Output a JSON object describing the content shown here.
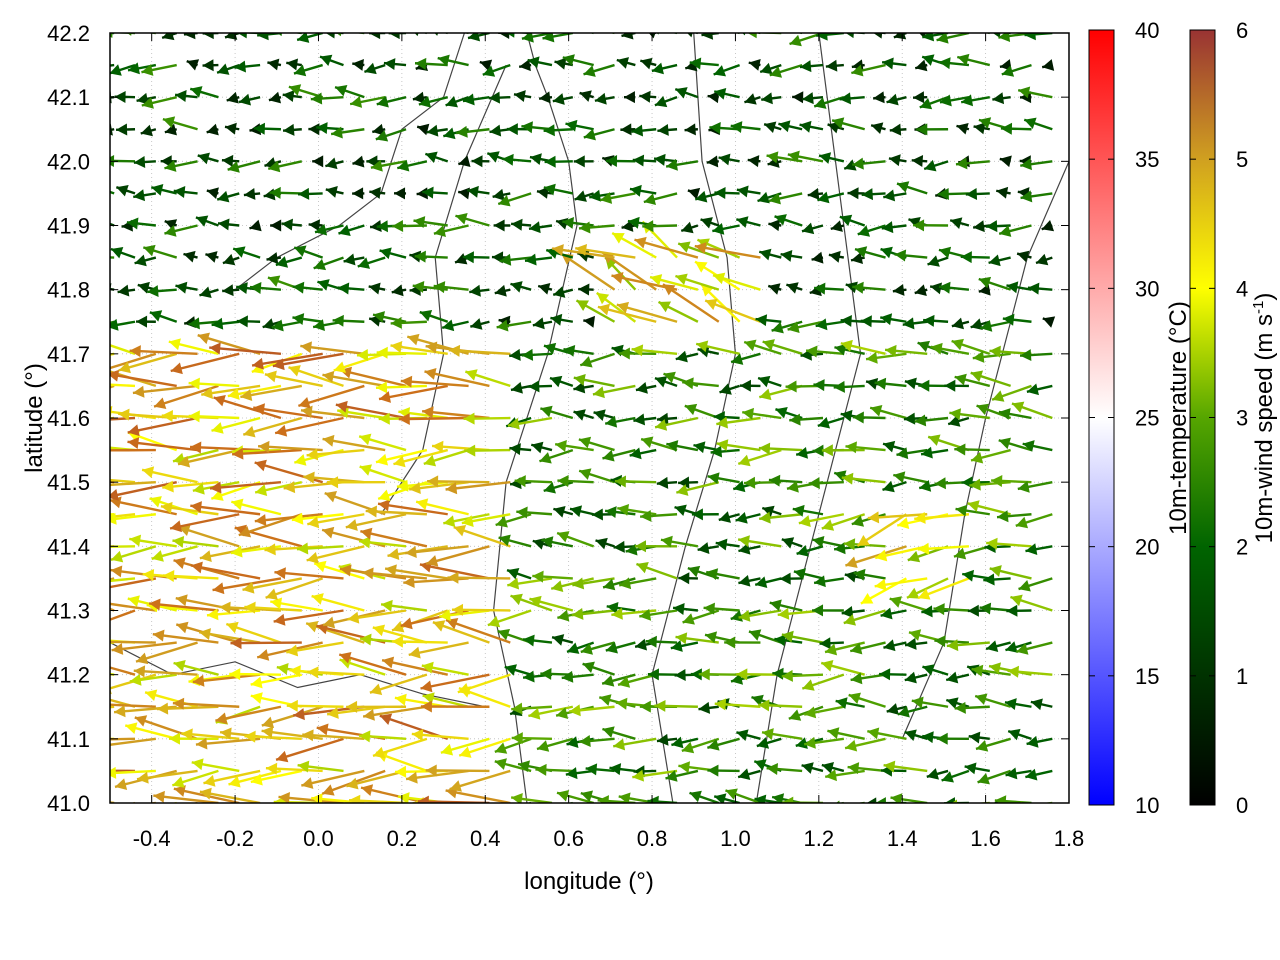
{
  "chart_data": {
    "type": "vector-field",
    "xlabel": "longitude (°)",
    "ylabel": "latitude (°)",
    "xlim": [
      -0.5,
      1.8
    ],
    "ylim": [
      41.0,
      42.2
    ],
    "xticks": [
      "-0.4",
      "-0.2",
      "0.0",
      "0.2",
      "0.4",
      "0.6",
      "0.8",
      "1.0",
      "1.2",
      "1.4",
      "1.6",
      "1.8"
    ],
    "xtick_values": [
      -0.4,
      -0.2,
      0.0,
      0.2,
      0.4,
      0.6,
      0.8,
      1.0,
      1.2,
      1.4,
      1.6,
      1.8
    ],
    "yticks": [
      "41.0",
      "41.1",
      "41.2",
      "41.3",
      "41.4",
      "41.5",
      "41.6",
      "41.7",
      "41.8",
      "41.9",
      "42.0",
      "42.1",
      "42.2"
    ],
    "ytick_values": [
      41.0,
      41.1,
      41.2,
      41.3,
      41.4,
      41.5,
      41.6,
      41.7,
      41.8,
      41.9,
      42.0,
      42.1,
      42.2
    ],
    "grid": true,
    "colorbars": [
      {
        "label": "10m-temperature (°C)",
        "ticks": [
          "10",
          "15",
          "20",
          "25",
          "30",
          "35",
          "40"
        ],
        "tick_values": [
          10,
          15,
          20,
          25,
          30,
          35,
          40
        ],
        "range": [
          10,
          40
        ],
        "colors": [
          "#0000ff",
          "#ffffff",
          "#ff0000"
        ]
      },
      {
        "label": "10m-wind speed (m s-1)",
        "label_main": "10m-wind speed (m s",
        "label_sup": "-1",
        "label_tail": ")",
        "ticks": [
          "0",
          "1",
          "2",
          "3",
          "4",
          "5",
          "6"
        ],
        "tick_values": [
          0,
          1,
          2,
          3,
          4,
          5,
          6
        ],
        "range": [
          0,
          6
        ],
        "colors": [
          "#000000",
          "#006400",
          "#56a600",
          "#ffff00",
          "#d0a020",
          "#cc6f1a",
          "#993333"
        ]
      }
    ],
    "wind_field": {
      "lon_start": -0.49,
      "lon_step": 0.05,
      "lat_start": 41.0,
      "lat_step": 0.05,
      "speed_bands": [
        {
          "lat_min": 41.0,
          "lat_max": 41.7,
          "lon_min": -0.5,
          "lon_max": 0.5,
          "speed": 4.6,
          "direction": "west"
        },
        {
          "lat_min": 41.7,
          "lat_max": 42.2,
          "lon_min": -0.5,
          "lon_max": 1.8,
          "speed": 1.6,
          "direction": "west"
        },
        {
          "lat_min": 41.0,
          "lat_max": 41.7,
          "lon_min": 0.5,
          "lon_max": 1.8,
          "speed": 2.4,
          "direction": "west"
        },
        {
          "lat_min": 41.72,
          "lat_max": 41.85,
          "lon_min": 0.7,
          "lon_max": 1.1,
          "speed": 4.2,
          "direction": "northwest"
        },
        {
          "lat_min": 41.3,
          "lat_max": 41.45,
          "lon_min": 1.4,
          "lon_max": 1.6,
          "speed": 4.0,
          "direction": "southwest"
        }
      ]
    },
    "contours": [
      {
        "lon": [
          0.5,
          0.47,
          0.42,
          0.45,
          0.55,
          0.62,
          0.6,
          0.55,
          0.52,
          0.5
        ],
        "lat": [
          41.0,
          41.15,
          41.3,
          41.5,
          41.7,
          41.9,
          42.0,
          42.1,
          42.15,
          42.2
        ]
      },
      {
        "lon": [
          0.85,
          0.8,
          0.88,
          0.95,
          1.0,
          0.98,
          0.92,
          0.9
        ],
        "lat": [
          41.0,
          41.2,
          41.4,
          41.55,
          41.7,
          41.85,
          42.0,
          42.2
        ]
      },
      {
        "lon": [
          -0.2,
          -0.1,
          0.05,
          0.15,
          0.2,
          0.3,
          0.35
        ],
        "lat": [
          41.8,
          41.85,
          41.9,
          41.95,
          42.05,
          42.1,
          42.2
        ]
      },
      {
        "lon": [
          1.05,
          1.1,
          1.2,
          1.3,
          1.25,
          1.2
        ],
        "lat": [
          41.0,
          41.2,
          41.45,
          41.7,
          41.95,
          42.2
        ]
      },
      {
        "lon": [
          -0.5,
          -0.35,
          -0.2,
          -0.05,
          0.1,
          0.25,
          0.4
        ],
        "lat": [
          41.25,
          41.2,
          41.22,
          41.18,
          41.2,
          41.17,
          41.15
        ]
      },
      {
        "lon": [
          1.4,
          1.5,
          1.55,
          1.6,
          1.7,
          1.8
        ],
        "lat": [
          41.1,
          41.25,
          41.45,
          41.6,
          41.85,
          42.0
        ]
      },
      {
        "lon": [
          0.15,
          0.25,
          0.3,
          0.28,
          0.35,
          0.45
        ],
        "lat": [
          41.45,
          41.55,
          41.7,
          41.85,
          42.0,
          42.15
        ]
      }
    ]
  }
}
